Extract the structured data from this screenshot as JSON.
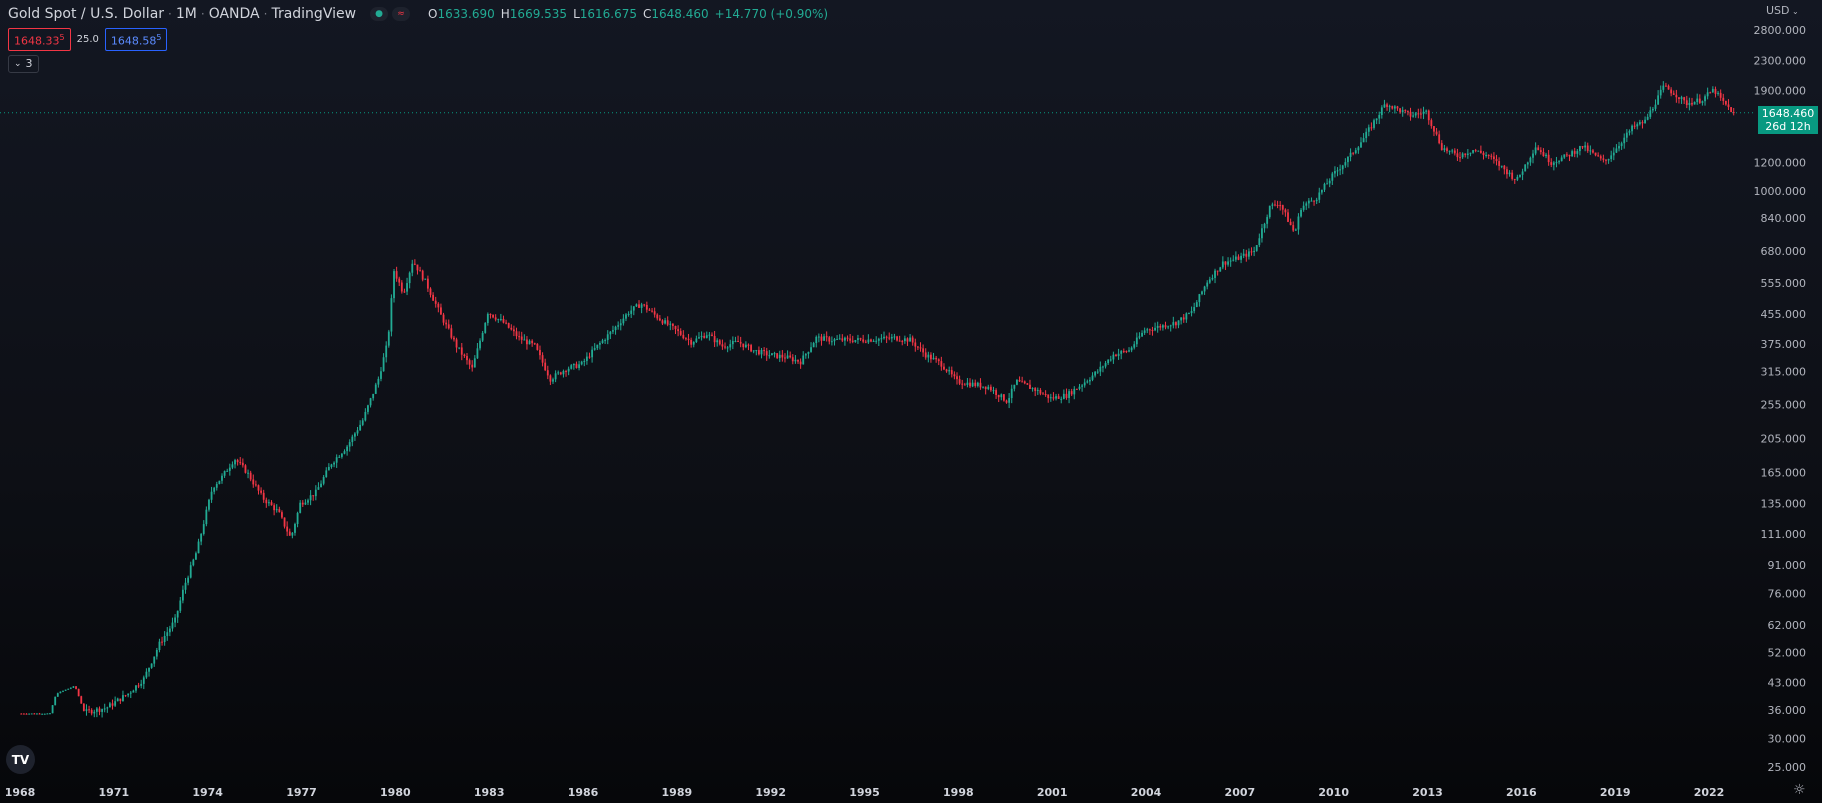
{
  "header": {
    "symbol": "Gold Spot / U.S. Dollar",
    "interval": "1M",
    "broker": "OANDA",
    "platform": "TradingView",
    "ohlc": {
      "o_label": "O",
      "o": "1633.690",
      "h_label": "H",
      "h": "1669.535",
      "l_label": "L",
      "l": "1616.675",
      "c_label": "C",
      "c": "1648.460",
      "change": "+14.770 (+0.90%)"
    },
    "sell_price": "1648.33",
    "sell_sup": "5",
    "spread": "25.0",
    "buy_price": "1648.58",
    "buy_sup": "5",
    "indicators_toggle": "3"
  },
  "axis": {
    "currency": "USD",
    "last_price": "1648.460",
    "countdown": "26d 12h"
  },
  "colors": {
    "up": "#22ab94",
    "down": "#f23645",
    "price_line": "#089981"
  },
  "icons": {
    "logo": "tradingview-logo-icon",
    "settings": "settings-icon",
    "chevron": "chevron-down-icon"
  },
  "chart_data": {
    "type": "candlestick",
    "scale": "log",
    "ylim": [
      25,
      2800
    ],
    "yticks": [
      2800,
      2300,
      1900,
      1200,
      1000,
      840,
      680,
      555,
      455,
      375,
      315,
      255,
      205,
      165,
      135,
      111,
      91,
      76,
      62,
      52,
      43,
      36,
      30,
      25
    ],
    "ytick_labels": [
      "2800.000",
      "2300.000",
      "1900.000",
      "1200.000",
      "1000.000",
      "840.000",
      "680.000",
      "555.000",
      "455.000",
      "375.000",
      "315.000",
      "255.000",
      "205.000",
      "165.000",
      "135.000",
      "111.000",
      "91.000",
      "76.000",
      "62.000",
      "52.000",
      "43.000",
      "36.000",
      "30.000",
      "25.000"
    ],
    "xticks": [
      "1968",
      "1971",
      "1974",
      "1977",
      "1980",
      "1983",
      "1986",
      "1989",
      "1992",
      "1995",
      "1998",
      "2001",
      "2004",
      "2007",
      "2010",
      "2013",
      "2016",
      "2019",
      "2022"
    ],
    "xlim": [
      1968.0,
      2022.83
    ],
    "last_close": 1648.46,
    "anchors": [
      [
        1968.0,
        35.2
      ],
      [
        1969.0,
        35.2
      ],
      [
        1969.2,
        40
      ],
      [
        1969.8,
        42
      ],
      [
        1970.1,
        35.5
      ],
      [
        1970.8,
        36.5
      ],
      [
        1971.5,
        40
      ],
      [
        1972.0,
        44
      ],
      [
        1972.5,
        55
      ],
      [
        1973.0,
        64
      ],
      [
        1973.3,
        80
      ],
      [
        1973.7,
        100
      ],
      [
        1974.0,
        128
      ],
      [
        1974.2,
        150
      ],
      [
        1974.5,
        160
      ],
      [
        1974.9,
        180
      ],
      [
        1975.3,
        165
      ],
      [
        1975.8,
        140
      ],
      [
        1976.3,
        128
      ],
      [
        1976.7,
        108
      ],
      [
        1977.0,
        135
      ],
      [
        1977.5,
        145
      ],
      [
        1978.0,
        175
      ],
      [
        1978.5,
        195
      ],
      [
        1979.0,
        230
      ],
      [
        1979.5,
        300
      ],
      [
        1979.8,
        380
      ],
      [
        1980.0,
        600
      ],
      [
        1980.3,
        520
      ],
      [
        1980.6,
        640
      ],
      [
        1981.0,
        560
      ],
      [
        1981.5,
        450
      ],
      [
        1982.0,
        370
      ],
      [
        1982.5,
        320
      ],
      [
        1983.0,
        460
      ],
      [
        1983.5,
        430
      ],
      [
        1984.0,
        390
      ],
      [
        1984.5,
        370
      ],
      [
        1985.0,
        300
      ],
      [
        1985.5,
        320
      ],
      [
        1986.0,
        330
      ],
      [
        1986.5,
        370
      ],
      [
        1987.0,
        410
      ],
      [
        1987.5,
        460
      ],
      [
        1987.9,
        485
      ],
      [
        1988.5,
        440
      ],
      [
        1989.0,
        410
      ],
      [
        1989.5,
        380
      ],
      [
        1990.0,
        400
      ],
      [
        1990.5,
        370
      ],
      [
        1991.0,
        380
      ],
      [
        1991.5,
        360
      ],
      [
        1992.0,
        350
      ],
      [
        1992.5,
        345
      ],
      [
        1993.0,
        335
      ],
      [
        1993.5,
        390
      ],
      [
        1994.0,
        385
      ],
      [
        1995.0,
        385
      ],
      [
        1996.0,
        390
      ],
      [
        1996.5,
        385
      ],
      [
        1997.0,
        350
      ],
      [
        1997.5,
        330
      ],
      [
        1998.0,
        295
      ],
      [
        1998.5,
        290
      ],
      [
        1999.0,
        285
      ],
      [
        1999.6,
        260
      ],
      [
        1999.9,
        295
      ],
      [
        2000.5,
        280
      ],
      [
        2001.0,
        265
      ],
      [
        2001.5,
        270
      ],
      [
        2002.0,
        290
      ],
      [
        2002.5,
        315
      ],
      [
        2003.0,
        350
      ],
      [
        2003.5,
        360
      ],
      [
        2004.0,
        410
      ],
      [
        2005.0,
        430
      ],
      [
        2005.5,
        460
      ],
      [
        2006.0,
        560
      ],
      [
        2006.5,
        630
      ],
      [
        2007.0,
        650
      ],
      [
        2007.5,
        680
      ],
      [
        2008.0,
        900
      ],
      [
        2008.3,
        930
      ],
      [
        2008.8,
        760
      ],
      [
        2009.0,
        900
      ],
      [
        2009.5,
        960
      ],
      [
        2010.0,
        1100
      ],
      [
        2010.5,
        1230
      ],
      [
        2011.0,
        1400
      ],
      [
        2011.7,
        1750
      ],
      [
        2012.0,
        1700
      ],
      [
        2012.5,
        1620
      ],
      [
        2013.0,
        1660
      ],
      [
        2013.5,
        1320
      ],
      [
        2014.0,
        1250
      ],
      [
        2014.5,
        1300
      ],
      [
        2015.0,
        1250
      ],
      [
        2015.9,
        1070
      ],
      [
        2016.5,
        1330
      ],
      [
        2017.0,
        1200
      ],
      [
        2017.5,
        1250
      ],
      [
        2018.0,
        1330
      ],
      [
        2018.7,
        1200
      ],
      [
        2019.0,
        1290
      ],
      [
        2019.6,
        1500
      ],
      [
        2020.0,
        1560
      ],
      [
        2020.6,
        1950
      ],
      [
        2021.0,
        1850
      ],
      [
        2021.3,
        1750
      ],
      [
        2021.8,
        1790
      ],
      [
        2022.2,
        1910
      ],
      [
        2022.5,
        1760
      ],
      [
        2022.83,
        1648.46
      ]
    ]
  }
}
